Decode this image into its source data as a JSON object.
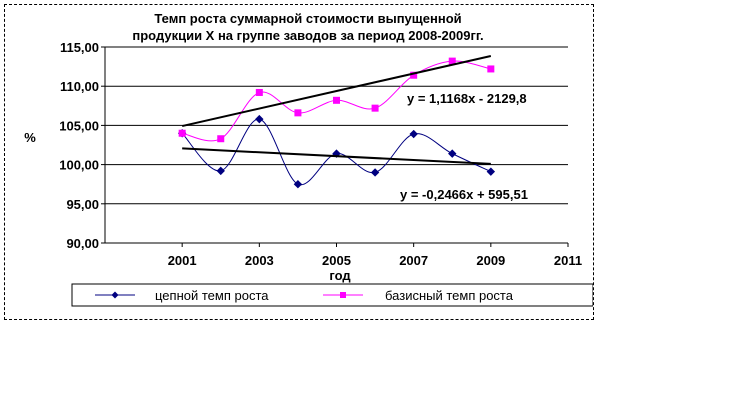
{
  "chart_data": {
    "type": "line",
    "title": [
      "Темп роста суммарной стоимости выпущенной",
      "продукции Х  на группе заводов за период 2008-2009гг."
    ],
    "xlabel": "год",
    "ylabel": "%",
    "xlim": [
      1999,
      2011
    ],
    "ylim": [
      90,
      115
    ],
    "x_ticks": [
      2001,
      2003,
      2005,
      2007,
      2009,
      2011
    ],
    "x_tick_labels": [
      "2001",
      "2003",
      "2005",
      "2007",
      "2009",
      "2011"
    ],
    "y_ticks": [
      90,
      95,
      100,
      105,
      110,
      115
    ],
    "y_tick_labels": [
      "90,00",
      "95,00",
      "100,00",
      "105,00",
      "110,00",
      "115,00"
    ],
    "grid": "horizontal",
    "legend_position": "bottom",
    "series": [
      {
        "name": "цепной  темп роста",
        "color": "#000080",
        "marker": "diamond",
        "x": [
          2001,
          2002,
          2003,
          2004,
          2005,
          2006,
          2007,
          2008,
          2009
        ],
        "values": [
          104.0,
          99.2,
          105.8,
          97.5,
          101.4,
          99.0,
          103.9,
          101.4,
          99.1
        ]
      },
      {
        "name": "базисный  темп роста",
        "color": "#ff00ff",
        "marker": "square",
        "x": [
          2001,
          2002,
          2003,
          2004,
          2005,
          2006,
          2007,
          2008,
          2009
        ],
        "values": [
          104.0,
          103.3,
          109.2,
          106.6,
          108.2,
          107.2,
          111.4,
          113.2,
          112.2
        ]
      }
    ],
    "trendlines": [
      {
        "equation": "y = 1,1168x - 2129,8",
        "slope": 1.1168,
        "intercept": -2129.8,
        "x": [
          2001,
          2009
        ],
        "color": "#000000"
      },
      {
        "equation": "y = -0,2466x + 595,51",
        "slope": -0.2466,
        "intercept": 595.51,
        "x": [
          2001,
          2009
        ],
        "color": "#000000"
      }
    ]
  }
}
